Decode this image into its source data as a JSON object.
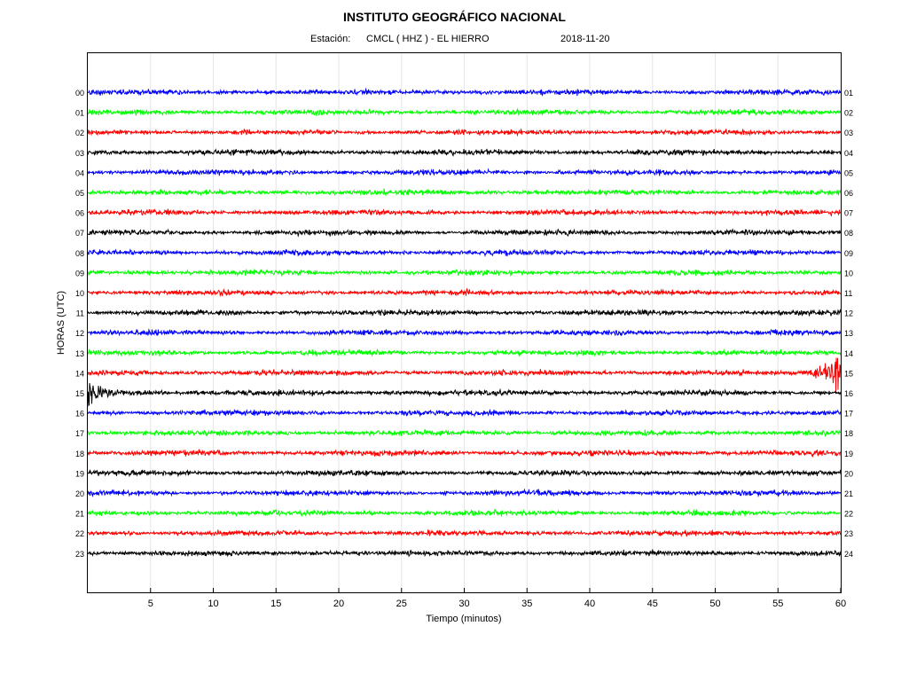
{
  "header": {
    "title": "INSTITUTO GEOGRÁFICO NACIONAL",
    "station_label": "Estación:",
    "station": "CMCL ( HHZ ) - EL HIERRO",
    "date": "2018-11-20"
  },
  "chart_data": {
    "type": "line",
    "title": "INSTITUTO GEOGRÁFICO NACIONAL",
    "xlabel": "Tiempo (minutos)",
    "ylabel": "HORAS (UTC)",
    "xlim": [
      0,
      60
    ],
    "x_ticks": [
      5,
      10,
      15,
      20,
      25,
      30,
      35,
      40,
      45,
      50,
      55,
      60
    ],
    "grid": true,
    "color_cycle": [
      "#0000ff",
      "#00ff00",
      "#ff0000",
      "#000000"
    ],
    "left_labels": [
      "00",
      "01",
      "02",
      "03",
      "04",
      "05",
      "06",
      "07",
      "08",
      "09",
      "10",
      "11",
      "12",
      "13",
      "14",
      "15",
      "16",
      "17",
      "18",
      "19",
      "20",
      "21",
      "22",
      "23"
    ],
    "right_labels": [
      "01",
      "02",
      "03",
      "04",
      "05",
      "06",
      "07",
      "08",
      "09",
      "10",
      "11",
      "12",
      "13",
      "14",
      "15",
      "16",
      "17",
      "18",
      "19",
      "20",
      "21",
      "22",
      "23",
      "24"
    ],
    "events": [
      {
        "hour": "14",
        "start_minute": 56,
        "end_minute": 60,
        "note": "earthquake onset"
      },
      {
        "hour": "15",
        "start_minute": 0,
        "end_minute": 6,
        "note": "earthquake coda"
      }
    ]
  }
}
